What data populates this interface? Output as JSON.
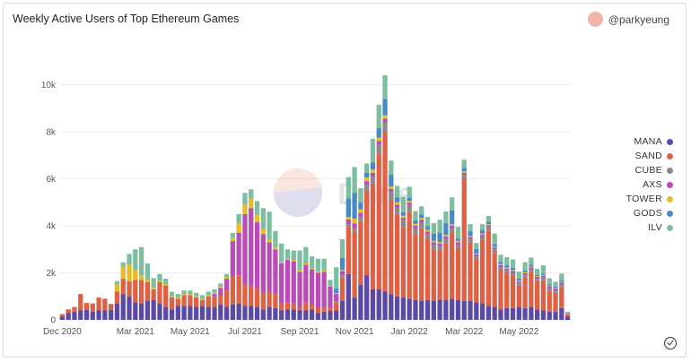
{
  "header": {
    "title": "Weekly Active Users of Top Ethereum Games",
    "author": "@parkyeung"
  },
  "chart_data": {
    "type": "bar",
    "stacked": true,
    "title": "Weekly Active Users of Top Ethereum Games",
    "xlabel": "",
    "ylabel": "",
    "ylim": [
      0,
      12000
    ],
    "y_ticks": [
      0,
      2000,
      4000,
      6000,
      8000,
      10000
    ],
    "y_tick_labels": [
      "0",
      "2k",
      "4k",
      "6k",
      "8k",
      "10k"
    ],
    "x_tick_labels": [
      "Dec 2020",
      "Mar 2021",
      "May 2021",
      "Jul 2021",
      "Sep 2021",
      "Nov 2021",
      "Jan 2022",
      "Mar 2022",
      "May 2022"
    ],
    "x_tick_weeks": [
      0,
      12,
      21,
      30,
      39,
      48,
      57,
      66,
      75
    ],
    "grid": true,
    "legend_placement": "right",
    "series": [
      {
        "name": "MANA",
        "color": "#5b4aa5",
        "values": [
          150,
          300,
          350,
          400,
          420,
          350,
          400,
          400,
          430,
          700,
          1100,
          1000,
          750,
          700,
          800,
          850,
          700,
          550,
          450,
          600,
          600,
          600,
          550,
          600,
          550,
          550,
          650,
          550,
          650,
          700,
          600,
          600,
          550,
          450,
          550,
          500,
          400,
          450,
          450,
          400,
          400,
          450,
          300,
          350,
          380,
          400,
          800,
          1950,
          950,
          1500,
          1900,
          1300,
          1300,
          1200,
          1100,
          1000,
          950,
          900,
          850,
          800,
          850,
          800,
          850,
          850,
          900,
          850,
          800,
          800,
          750,
          700,
          600,
          550,
          450,
          500,
          500,
          550,
          500,
          550,
          450,
          400,
          350,
          350,
          500,
          150
        ]
      },
      {
        "name": "SAND",
        "color": "#de6145",
        "values": [
          100,
          150,
          200,
          700,
          300,
          350,
          550,
          500,
          250,
          500,
          650,
          650,
          950,
          1000,
          800,
          450,
          900,
          900,
          500,
          300,
          450,
          450,
          400,
          250,
          450,
          450,
          400,
          700,
          1200,
          1200,
          900,
          850,
          800,
          700,
          650,
          600,
          300,
          300,
          250,
          150,
          350,
          200,
          200,
          200,
          130,
          350,
          1000,
          2000,
          2800,
          2700,
          3600,
          4500,
          5800,
          6800,
          4000,
          3500,
          3000,
          3700,
          2800,
          3100,
          2600,
          2200,
          2100,
          2400,
          2800,
          2200,
          5200,
          2500,
          1800,
          2700,
          3200,
          2300,
          1700,
          1500,
          1400,
          900,
          1300,
          1500,
          1200,
          1300,
          900,
          800,
          900,
          50
        ]
      },
      {
        "name": "CUBE",
        "color": "#8a8a8a",
        "values": [
          0,
          0,
          0,
          0,
          0,
          0,
          0,
          0,
          0,
          0,
          0,
          0,
          0,
          0,
          0,
          0,
          0,
          0,
          0,
          0,
          0,
          0,
          0,
          0,
          0,
          0,
          0,
          0,
          0,
          0,
          0,
          0,
          0,
          0,
          0,
          0,
          0,
          0,
          0,
          0,
          0,
          0,
          0,
          0,
          0,
          50,
          80,
          120,
          150,
          200,
          250,
          300,
          350,
          400,
          350,
          300,
          300,
          280,
          250,
          250,
          200,
          200,
          200,
          200,
          200,
          150,
          150,
          150,
          150,
          150,
          150,
          150,
          100,
          100,
          100,
          100,
          100,
          100,
          100,
          100,
          100,
          100,
          100,
          30
        ]
      },
      {
        "name": "AXS",
        "color": "#b94cb6",
        "values": [
          0,
          0,
          0,
          0,
          0,
          0,
          0,
          0,
          0,
          0,
          0,
          0,
          0,
          0,
          0,
          0,
          0,
          0,
          0,
          0,
          0,
          0,
          0,
          0,
          0,
          100,
          300,
          500,
          1500,
          1800,
          3000,
          3300,
          2800,
          2500,
          2100,
          1900,
          1700,
          1800,
          1800,
          1500,
          1600,
          1500,
          1500,
          1500,
          900,
          300,
          200,
          200,
          200,
          150,
          150,
          150,
          150,
          150,
          120,
          100,
          100,
          100,
          100,
          100,
          100,
          100,
          100,
          100,
          100,
          100,
          100,
          80,
          80,
          80,
          80,
          80,
          80,
          80,
          80,
          80,
          80,
          80,
          80,
          80,
          80,
          80,
          80,
          30
        ]
      },
      {
        "name": "TOWER",
        "color": "#e3bd2a",
        "values": [
          0,
          0,
          0,
          0,
          0,
          0,
          0,
          0,
          0,
          300,
          500,
          700,
          400,
          200,
          100,
          80,
          50,
          50,
          50,
          50,
          50,
          50,
          50,
          50,
          50,
          50,
          50,
          50,
          150,
          400,
          400,
          400,
          300,
          200,
          100,
          80,
          50,
          50,
          50,
          50,
          50,
          50,
          50,
          50,
          40,
          40,
          50,
          100,
          200,
          150,
          150,
          150,
          150,
          150,
          100,
          100,
          80,
          80,
          80,
          80,
          80,
          60,
          60,
          60,
          60,
          60,
          60,
          40,
          40,
          40,
          40,
          40,
          40,
          40,
          40,
          40,
          40,
          40,
          30,
          30,
          30,
          30,
          30,
          10
        ]
      },
      {
        "name": "GODS",
        "color": "#4a8ac4",
        "values": [
          0,
          0,
          0,
          0,
          0,
          0,
          0,
          0,
          0,
          0,
          0,
          0,
          0,
          0,
          0,
          0,
          0,
          0,
          0,
          0,
          0,
          0,
          0,
          0,
          0,
          0,
          0,
          0,
          0,
          0,
          0,
          0,
          0,
          0,
          0,
          0,
          0,
          0,
          0,
          0,
          0,
          0,
          0,
          0,
          0,
          200,
          500,
          800,
          1100,
          300,
          200,
          300,
          400,
          700,
          500,
          200,
          150,
          150,
          150,
          150,
          150,
          300,
          400,
          500,
          600,
          100,
          150,
          200,
          200,
          150,
          100,
          100,
          100,
          100,
          100,
          80,
          80,
          80,
          60,
          60,
          60,
          60,
          60,
          20
        ]
      },
      {
        "name": "ILV",
        "color": "#7dbea0",
        "values": [
          0,
          0,
          0,
          0,
          0,
          0,
          0,
          0,
          0,
          150,
          200,
          450,
          900,
          1200,
          700,
          400,
          300,
          250,
          200,
          150,
          150,
          150,
          150,
          150,
          150,
          150,
          150,
          150,
          200,
          400,
          500,
          400,
          600,
          900,
          1200,
          700,
          800,
          400,
          400,
          850,
          700,
          500,
          550,
          500,
          250,
          900,
          800,
          900,
          1100,
          600,
          400,
          1000,
          1000,
          1000,
          600,
          500,
          650,
          450,
          400,
          350,
          400,
          450,
          550,
          500,
          550,
          500,
          350,
          300,
          250,
          250,
          250,
          450,
          300,
          350,
          350,
          300,
          350,
          300,
          250,
          350,
          250,
          200,
          300,
          50
        ]
      }
    ]
  }
}
